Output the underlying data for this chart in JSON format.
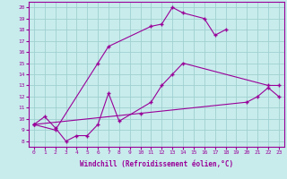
{
  "bg_color": "#c8ecec",
  "line_color": "#990099",
  "grid_color": "#a0d0d0",
  "xlabel": "Windchill (Refroidissement éolien,°C)",
  "xmin": -0.5,
  "xmax": 23.5,
  "ymin": 7.5,
  "ymax": 20.5,
  "xticks": [
    0,
    1,
    2,
    3,
    4,
    5,
    6,
    7,
    8,
    9,
    10,
    11,
    12,
    13,
    14,
    15,
    16,
    17,
    18,
    19,
    20,
    21,
    22,
    23
  ],
  "yticks": [
    8,
    9,
    10,
    11,
    12,
    13,
    14,
    15,
    16,
    17,
    18,
    19,
    20
  ],
  "series": [
    {
      "x": [
        0,
        2,
        6,
        7,
        11,
        12,
        13,
        14,
        16,
        17,
        18
      ],
      "y": [
        9.5,
        9.0,
        15.0,
        16.5,
        18.3,
        18.5,
        20.0,
        19.5,
        19.0,
        17.5,
        18.0
      ]
    },
    {
      "x": [
        0,
        1,
        2,
        3,
        4,
        5,
        6,
        7,
        8,
        11,
        12,
        13,
        14,
        22,
        23
      ],
      "y": [
        9.5,
        10.2,
        9.2,
        8.0,
        8.5,
        8.5,
        9.5,
        12.3,
        9.8,
        11.5,
        13.0,
        14.0,
        15.0,
        13.0,
        13.0
      ]
    },
    {
      "x": [
        0,
        10,
        20,
        21,
        22,
        23
      ],
      "y": [
        9.5,
        10.5,
        11.5,
        12.0,
        12.8,
        12.0
      ]
    }
  ]
}
